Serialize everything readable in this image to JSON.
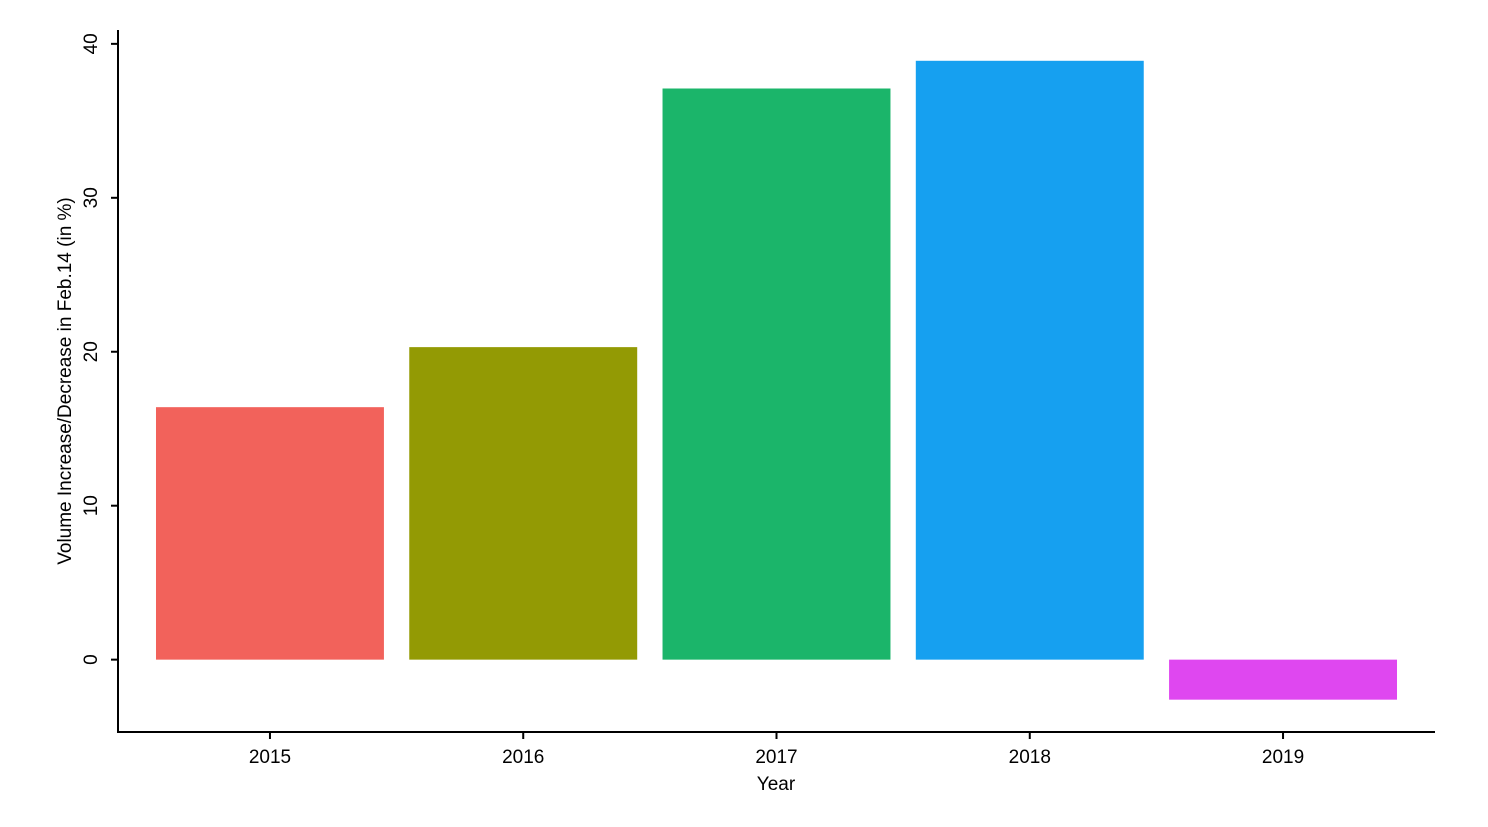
{
  "chart_data": {
    "type": "bar",
    "x_label": "Year",
    "y_label": "Volume Increase/Decrease in Feb.14 (in %)",
    "categories": [
      "2015",
      "2016",
      "2017",
      "2018",
      "2019"
    ],
    "values": [
      16.4,
      20.3,
      37.1,
      38.9,
      -2.6
    ],
    "colors": [
      "#f2625b",
      "#939a04",
      "#1bb56a",
      "#16a0f0",
      "#df47f0"
    ],
    "ylim": [
      -4.7,
      40.9
    ],
    "yticks": [
      0,
      10,
      20,
      30,
      40
    ],
    "grid": false
  }
}
